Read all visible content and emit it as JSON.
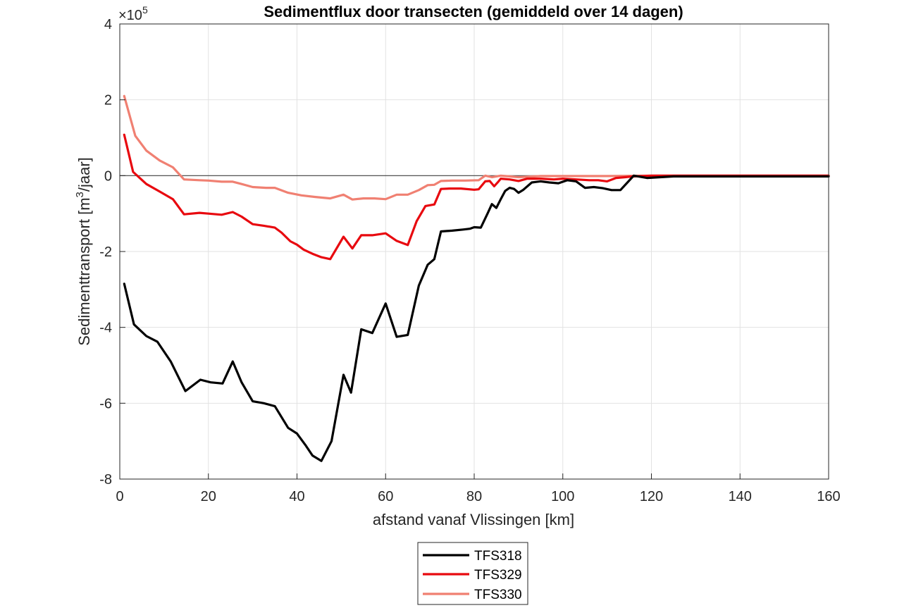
{
  "chart_data": {
    "type": "line",
    "title": "Sedimentflux door transecten (gemiddeld over 14 dagen)",
    "xlabel": "afstand vanaf Vlissingen [km]",
    "ylabel_parts": [
      "Sedimenttransport [m",
      "3",
      "/jaar]"
    ],
    "y_exponent": "5",
    "y_exponent_prefix": "×10",
    "xlim": [
      0,
      160
    ],
    "ylim": [
      -8,
      4
    ],
    "x_ticks": [
      0,
      20,
      40,
      60,
      80,
      100,
      120,
      140,
      160
    ],
    "y_ticks": [
      -8,
      -6,
      -4,
      -2,
      0,
      2,
      4
    ],
    "grid": true,
    "zero_line": true,
    "legend_position": "bottom-outside",
    "series": [
      {
        "name": "TFS318",
        "color": "#000000",
        "x": [
          1,
          3.2,
          6,
          8.5,
          11.5,
          14.8,
          18.2,
          20.5,
          23.2,
          25.5,
          27.5,
          30,
          32.5,
          35,
          38,
          40,
          42,
          43.5,
          45.5,
          47.8,
          50.5,
          52.2,
          54.5,
          57,
          60,
          62.5,
          65,
          67.5,
          69.5,
          71,
          72.5,
          75,
          77.5,
          79,
          80,
          81.5,
          83,
          84,
          85,
          86,
          87,
          88,
          89,
          90,
          91,
          93,
          95,
          97,
          99,
          101,
          103,
          105,
          107,
          109,
          111,
          113,
          116,
          119,
          125,
          160
        ],
        "y": [
          -2.85,
          -3.92,
          -4.23,
          -4.38,
          -4.9,
          -5.68,
          -5.38,
          -5.45,
          -5.48,
          -4.9,
          -5.45,
          -5.95,
          -6.0,
          -6.08,
          -6.65,
          -6.8,
          -7.12,
          -7.38,
          -7.52,
          -7.0,
          -5.25,
          -5.72,
          -4.05,
          -4.15,
          -3.37,
          -4.25,
          -4.2,
          -2.9,
          -2.35,
          -2.2,
          -1.47,
          -1.45,
          -1.42,
          -1.4,
          -1.36,
          -1.37,
          -1.0,
          -0.75,
          -0.85,
          -0.62,
          -0.4,
          -0.32,
          -0.35,
          -0.45,
          -0.38,
          -0.18,
          -0.15,
          -0.18,
          -0.2,
          -0.12,
          -0.15,
          -0.32,
          -0.3,
          -0.33,
          -0.38,
          -0.38,
          0.0,
          -0.06,
          -0.02,
          -0.02
        ]
      },
      {
        "name": "TFS329",
        "color": "#e8090f",
        "x": [
          1,
          3,
          6,
          9,
          12,
          14.5,
          18,
          20,
          23,
          25.5,
          27.5,
          30,
          32.5,
          35,
          36.5,
          38.5,
          40,
          41.5,
          43.5,
          45.5,
          47.5,
          50.5,
          52.5,
          54.5,
          57,
          60,
          62.5,
          65,
          67,
          69,
          71,
          72.5,
          74.5,
          77,
          80,
          81,
          82.5,
          83.5,
          84.5,
          85.5,
          86,
          88,
          90,
          92,
          95,
          98,
          100,
          103,
          106,
          108,
          110,
          112,
          116,
          120,
          160
        ],
        "y": [
          1.08,
          0.1,
          -0.22,
          -0.42,
          -0.62,
          -1.02,
          -0.98,
          -1.0,
          -1.03,
          -0.96,
          -1.08,
          -1.28,
          -1.32,
          -1.37,
          -1.5,
          -1.73,
          -1.82,
          -1.95,
          -2.06,
          -2.15,
          -2.2,
          -1.61,
          -1.92,
          -1.57,
          -1.57,
          -1.52,
          -1.72,
          -1.83,
          -1.2,
          -0.8,
          -0.76,
          -0.35,
          -0.34,
          -0.34,
          -0.37,
          -0.36,
          -0.15,
          -0.14,
          -0.28,
          -0.15,
          -0.08,
          -0.1,
          -0.14,
          -0.08,
          -0.08,
          -0.1,
          -0.08,
          -0.1,
          -0.12,
          -0.12,
          -0.15,
          -0.06,
          -0.02,
          0.0,
          0.0
        ]
      },
      {
        "name": "TFS330",
        "color": "#f08072",
        "x": [
          1,
          3.5,
          6,
          9,
          12,
          14.5,
          18,
          20,
          23,
          25.5,
          27.5,
          30,
          33,
          35,
          38,
          41,
          44,
          47.5,
          50.5,
          52.5,
          55,
          57.5,
          60,
          62.5,
          65,
          67.5,
          69.5,
          71,
          72.5,
          75,
          78,
          81,
          82.5,
          84,
          85,
          86,
          88,
          90,
          95,
          100,
          110,
          120,
          160
        ],
        "y": [
          2.1,
          1.05,
          0.66,
          0.4,
          0.22,
          -0.1,
          -0.12,
          -0.13,
          -0.16,
          -0.16,
          -0.22,
          -0.3,
          -0.32,
          -0.32,
          -0.45,
          -0.52,
          -0.56,
          -0.6,
          -0.5,
          -0.63,
          -0.6,
          -0.6,
          -0.62,
          -0.5,
          -0.5,
          -0.38,
          -0.25,
          -0.24,
          -0.14,
          -0.13,
          -0.13,
          -0.12,
          0.0,
          -0.04,
          -0.02,
          0.0,
          -0.02,
          -0.04,
          -0.01,
          -0.01,
          -0.01,
          0.0,
          0.0
        ]
      }
    ]
  },
  "colors": {
    "grid": "#e2e2e2",
    "axis": "#262626",
    "zero_line": "#404040"
  }
}
